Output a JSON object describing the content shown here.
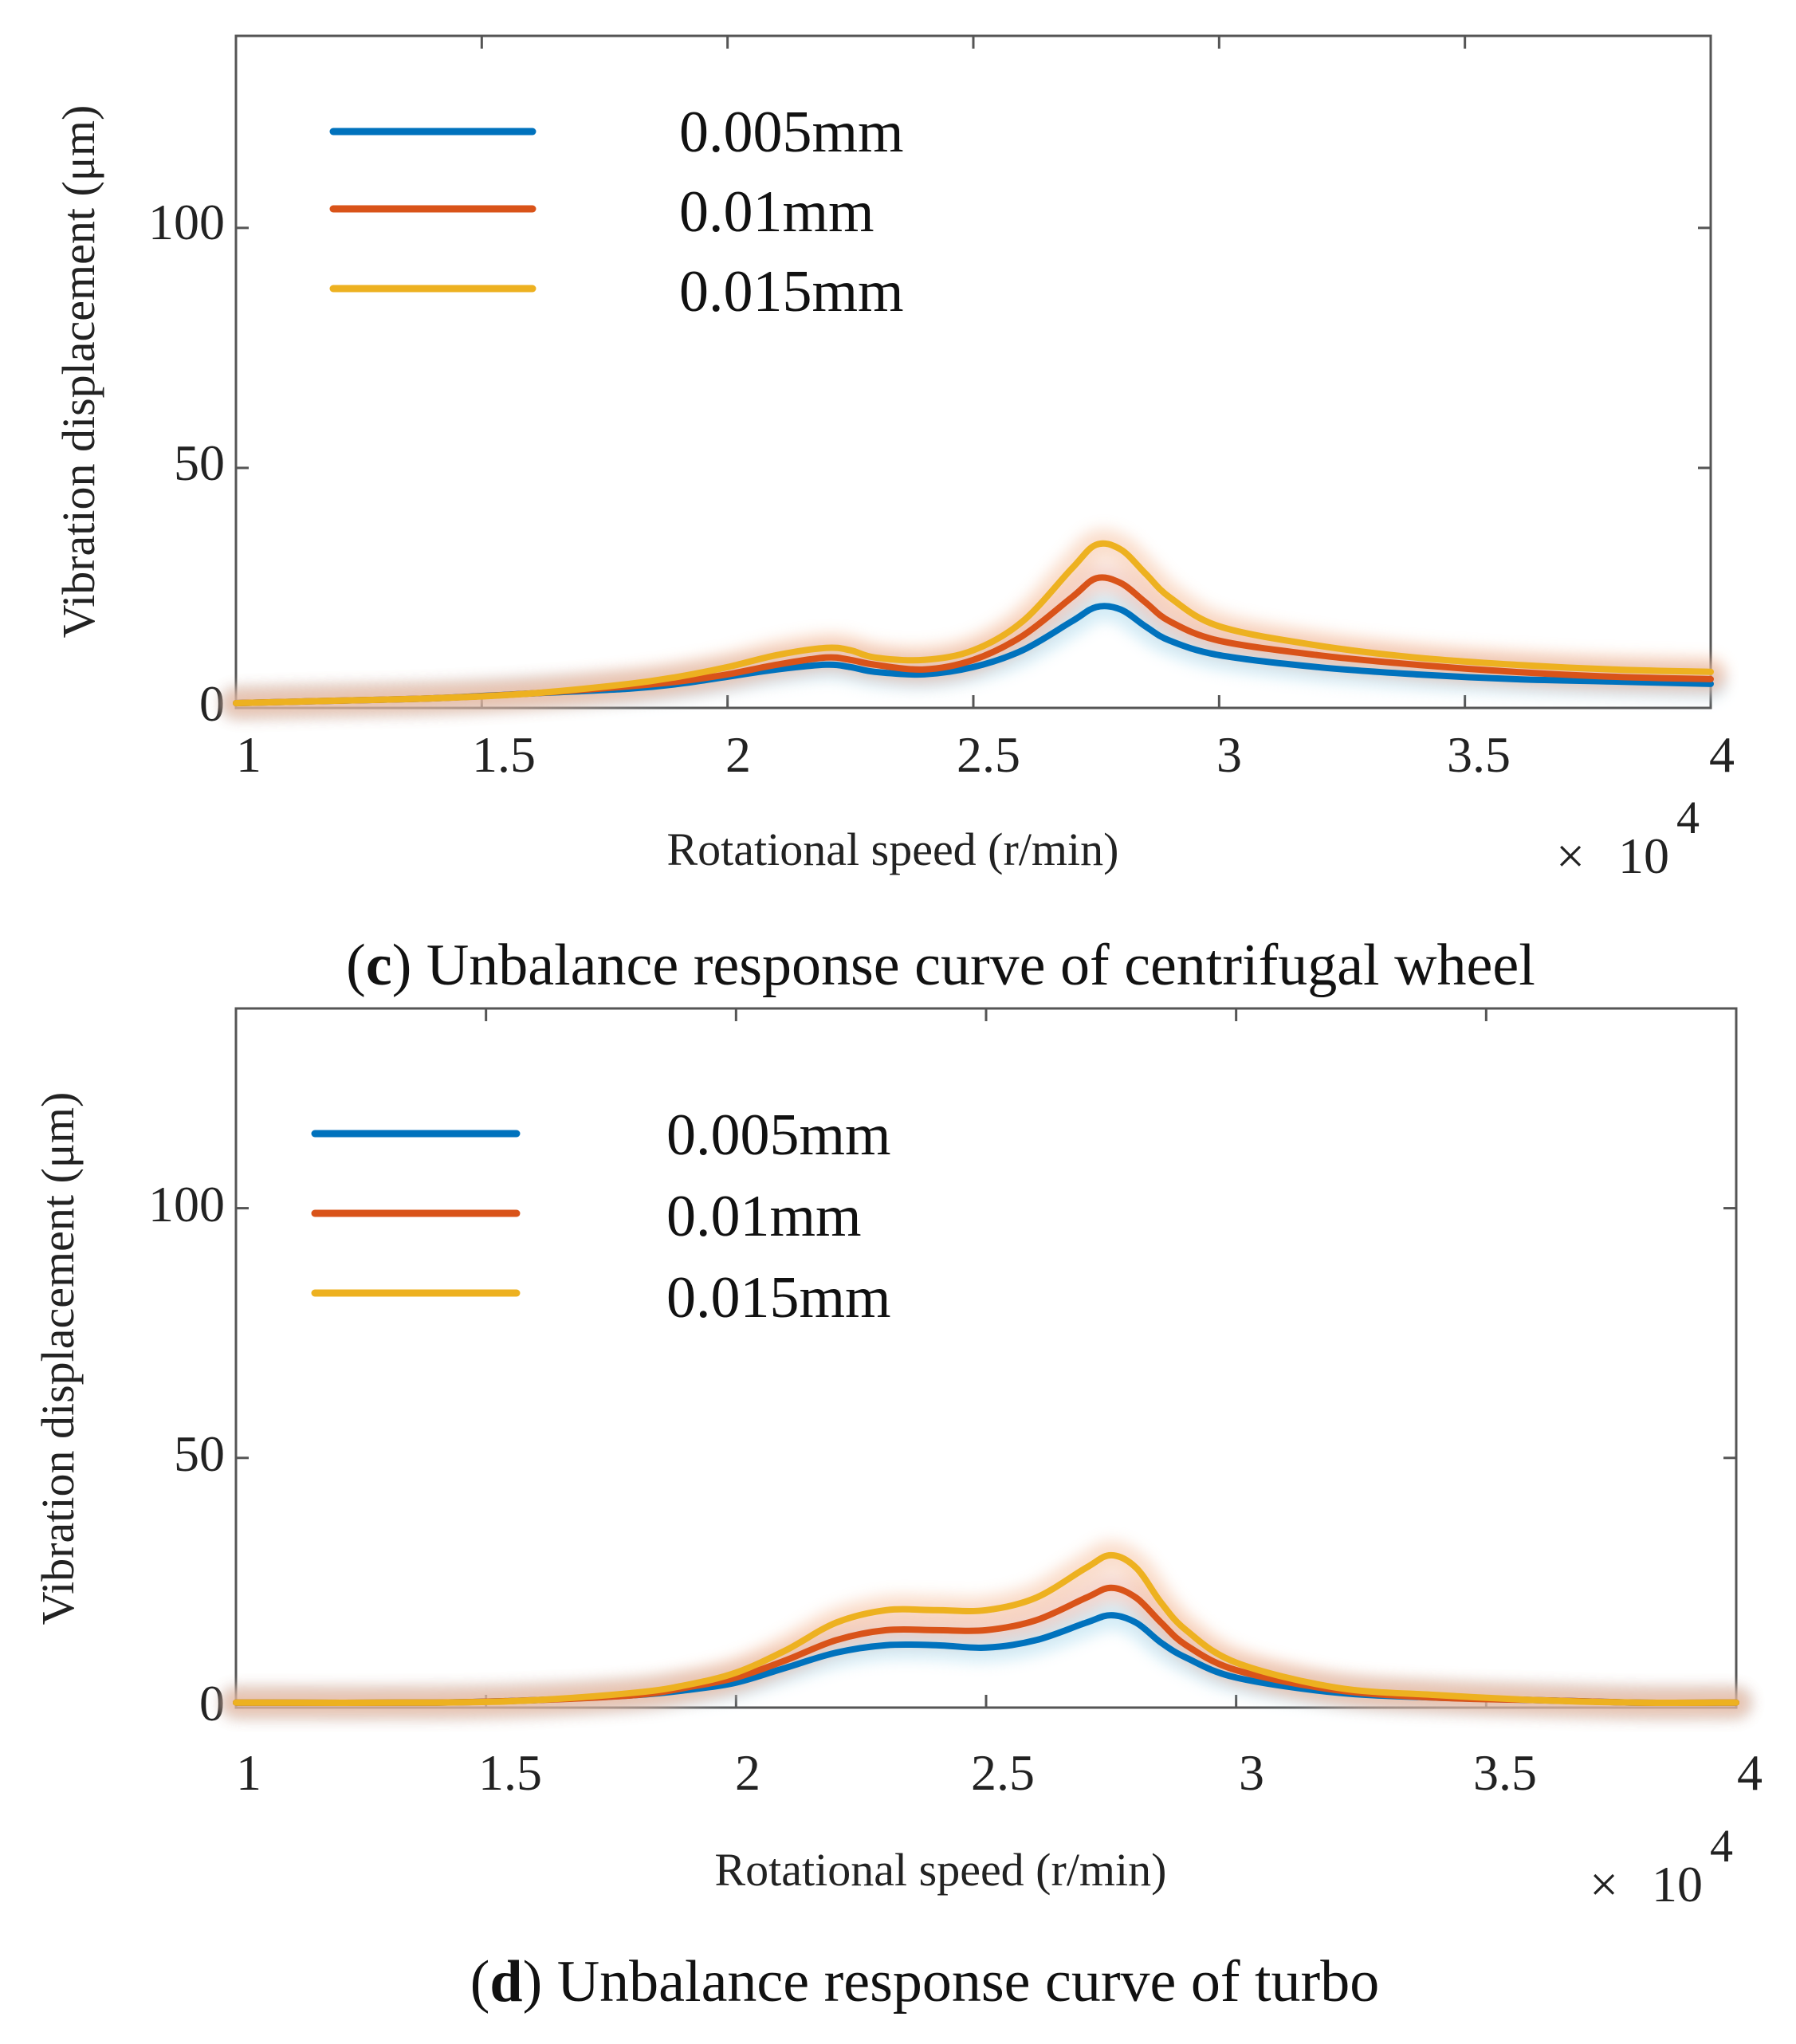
{
  "colors": {
    "series_0": "#0072BD",
    "series_1": "#D95319",
    "series_2": "#EDB120",
    "glow_0": "#9fd6ec",
    "glow_1": "#e9a998",
    "glow_2": "#f4b58e"
  },
  "chart_data": [
    {
      "type": "line",
      "panel": "c",
      "caption_letter": "c",
      "caption_text": ") Unbalance response curve of centrifugal wheel",
      "caption_open": "(",
      "xlabel": "Rotational speed (r/min)",
      "ylabel": "Vibration displacement (μm)",
      "x_multiplier_sign": "×",
      "x_multiplier_base": "10",
      "x_multiplier_exp": "4",
      "xlim": [
        1,
        4
      ],
      "ylim": [
        0,
        140
      ],
      "xticks": [
        "1",
        "1.5",
        "2",
        "2.5",
        "3",
        "3.5",
        "4"
      ],
      "yticks": [
        "0",
        "50",
        "100"
      ],
      "legend_position": "top-left",
      "x": [
        1.0,
        1.2,
        1.4,
        1.6,
        1.8,
        1.9,
        2.0,
        2.1,
        2.2,
        2.25,
        2.3,
        2.4,
        2.5,
        2.6,
        2.7,
        2.75,
        2.8,
        2.85,
        2.9,
        3.0,
        3.2,
        3.4,
        3.6,
        3.8,
        4.0
      ],
      "series": [
        {
          "name": "0.005mm",
          "values": [
            1,
            1.5,
            2,
            3,
            4,
            5,
            6.5,
            8,
            9,
            8.5,
            7.5,
            7,
            8.5,
            12,
            18,
            21,
            20.5,
            17,
            14,
            11,
            8.5,
            7,
            6,
            5.5,
            5
          ]
        },
        {
          "name": "0.01mm",
          "values": [
            1,
            1.5,
            2,
            3,
            4.5,
            5.5,
            7,
            9,
            10.5,
            10,
            9,
            8,
            10,
            15,
            23,
            27,
            26,
            22,
            18,
            14,
            11,
            9,
            7.5,
            6.5,
            6
          ]
        },
        {
          "name": "0.015mm",
          "values": [
            1,
            1.5,
            2,
            3,
            5,
            6.5,
            8.5,
            11,
            12.5,
            12,
            10.5,
            10,
            12,
            18,
            29,
            34,
            33,
            28,
            23,
            17,
            13,
            10.5,
            9,
            8,
            7.5
          ]
        }
      ]
    },
    {
      "type": "line",
      "panel": "d",
      "caption_letter": "d",
      "caption_text": ") Unbalance response curve of turbo",
      "caption_open": "(",
      "xlabel": "Rotational speed (r/min)",
      "ylabel": "Vibration displacement (μm)",
      "x_multiplier_sign": "×",
      "x_multiplier_base": "10",
      "x_multiplier_exp": "4",
      "xlim": [
        1,
        4
      ],
      "ylim": [
        0,
        140
      ],
      "xticks": [
        "1",
        "1.5",
        "2",
        "2.5",
        "3",
        "3.5",
        "4"
      ],
      "yticks": [
        "0",
        "50",
        "100"
      ],
      "legend_position": "top-left",
      "x": [
        1.0,
        1.4,
        1.6,
        1.8,
        1.9,
        2.0,
        2.1,
        2.2,
        2.3,
        2.4,
        2.5,
        2.6,
        2.7,
        2.75,
        2.8,
        2.85,
        2.9,
        3.0,
        3.2,
        3.4,
        3.6,
        3.8,
        4.0
      ],
      "series": [
        {
          "name": "0.005mm",
          "values": [
            1,
            1,
            1.5,
            2.5,
            3.5,
            5,
            8,
            11,
            12.5,
            12.5,
            12,
            13.5,
            17,
            18.5,
            17,
            13,
            10,
            6,
            3,
            2,
            1.5,
            1,
            1
          ]
        },
        {
          "name": "0.01mm",
          "values": [
            1,
            1,
            1.5,
            2.5,
            4,
            6,
            9.5,
            13.5,
            15.5,
            15.5,
            15.5,
            17.5,
            22,
            24,
            22,
            17,
            12.5,
            7.5,
            3.5,
            2,
            1.5,
            1,
            1
          ]
        },
        {
          "name": "0.015mm",
          "values": [
            1,
            1,
            1.5,
            3,
            4.5,
            7,
            11.5,
            17,
            19.5,
            19.5,
            19.5,
            22,
            28,
            30.5,
            28,
            21,
            15.5,
            9,
            4,
            2.5,
            1.5,
            1,
            1
          ]
        }
      ]
    }
  ]
}
